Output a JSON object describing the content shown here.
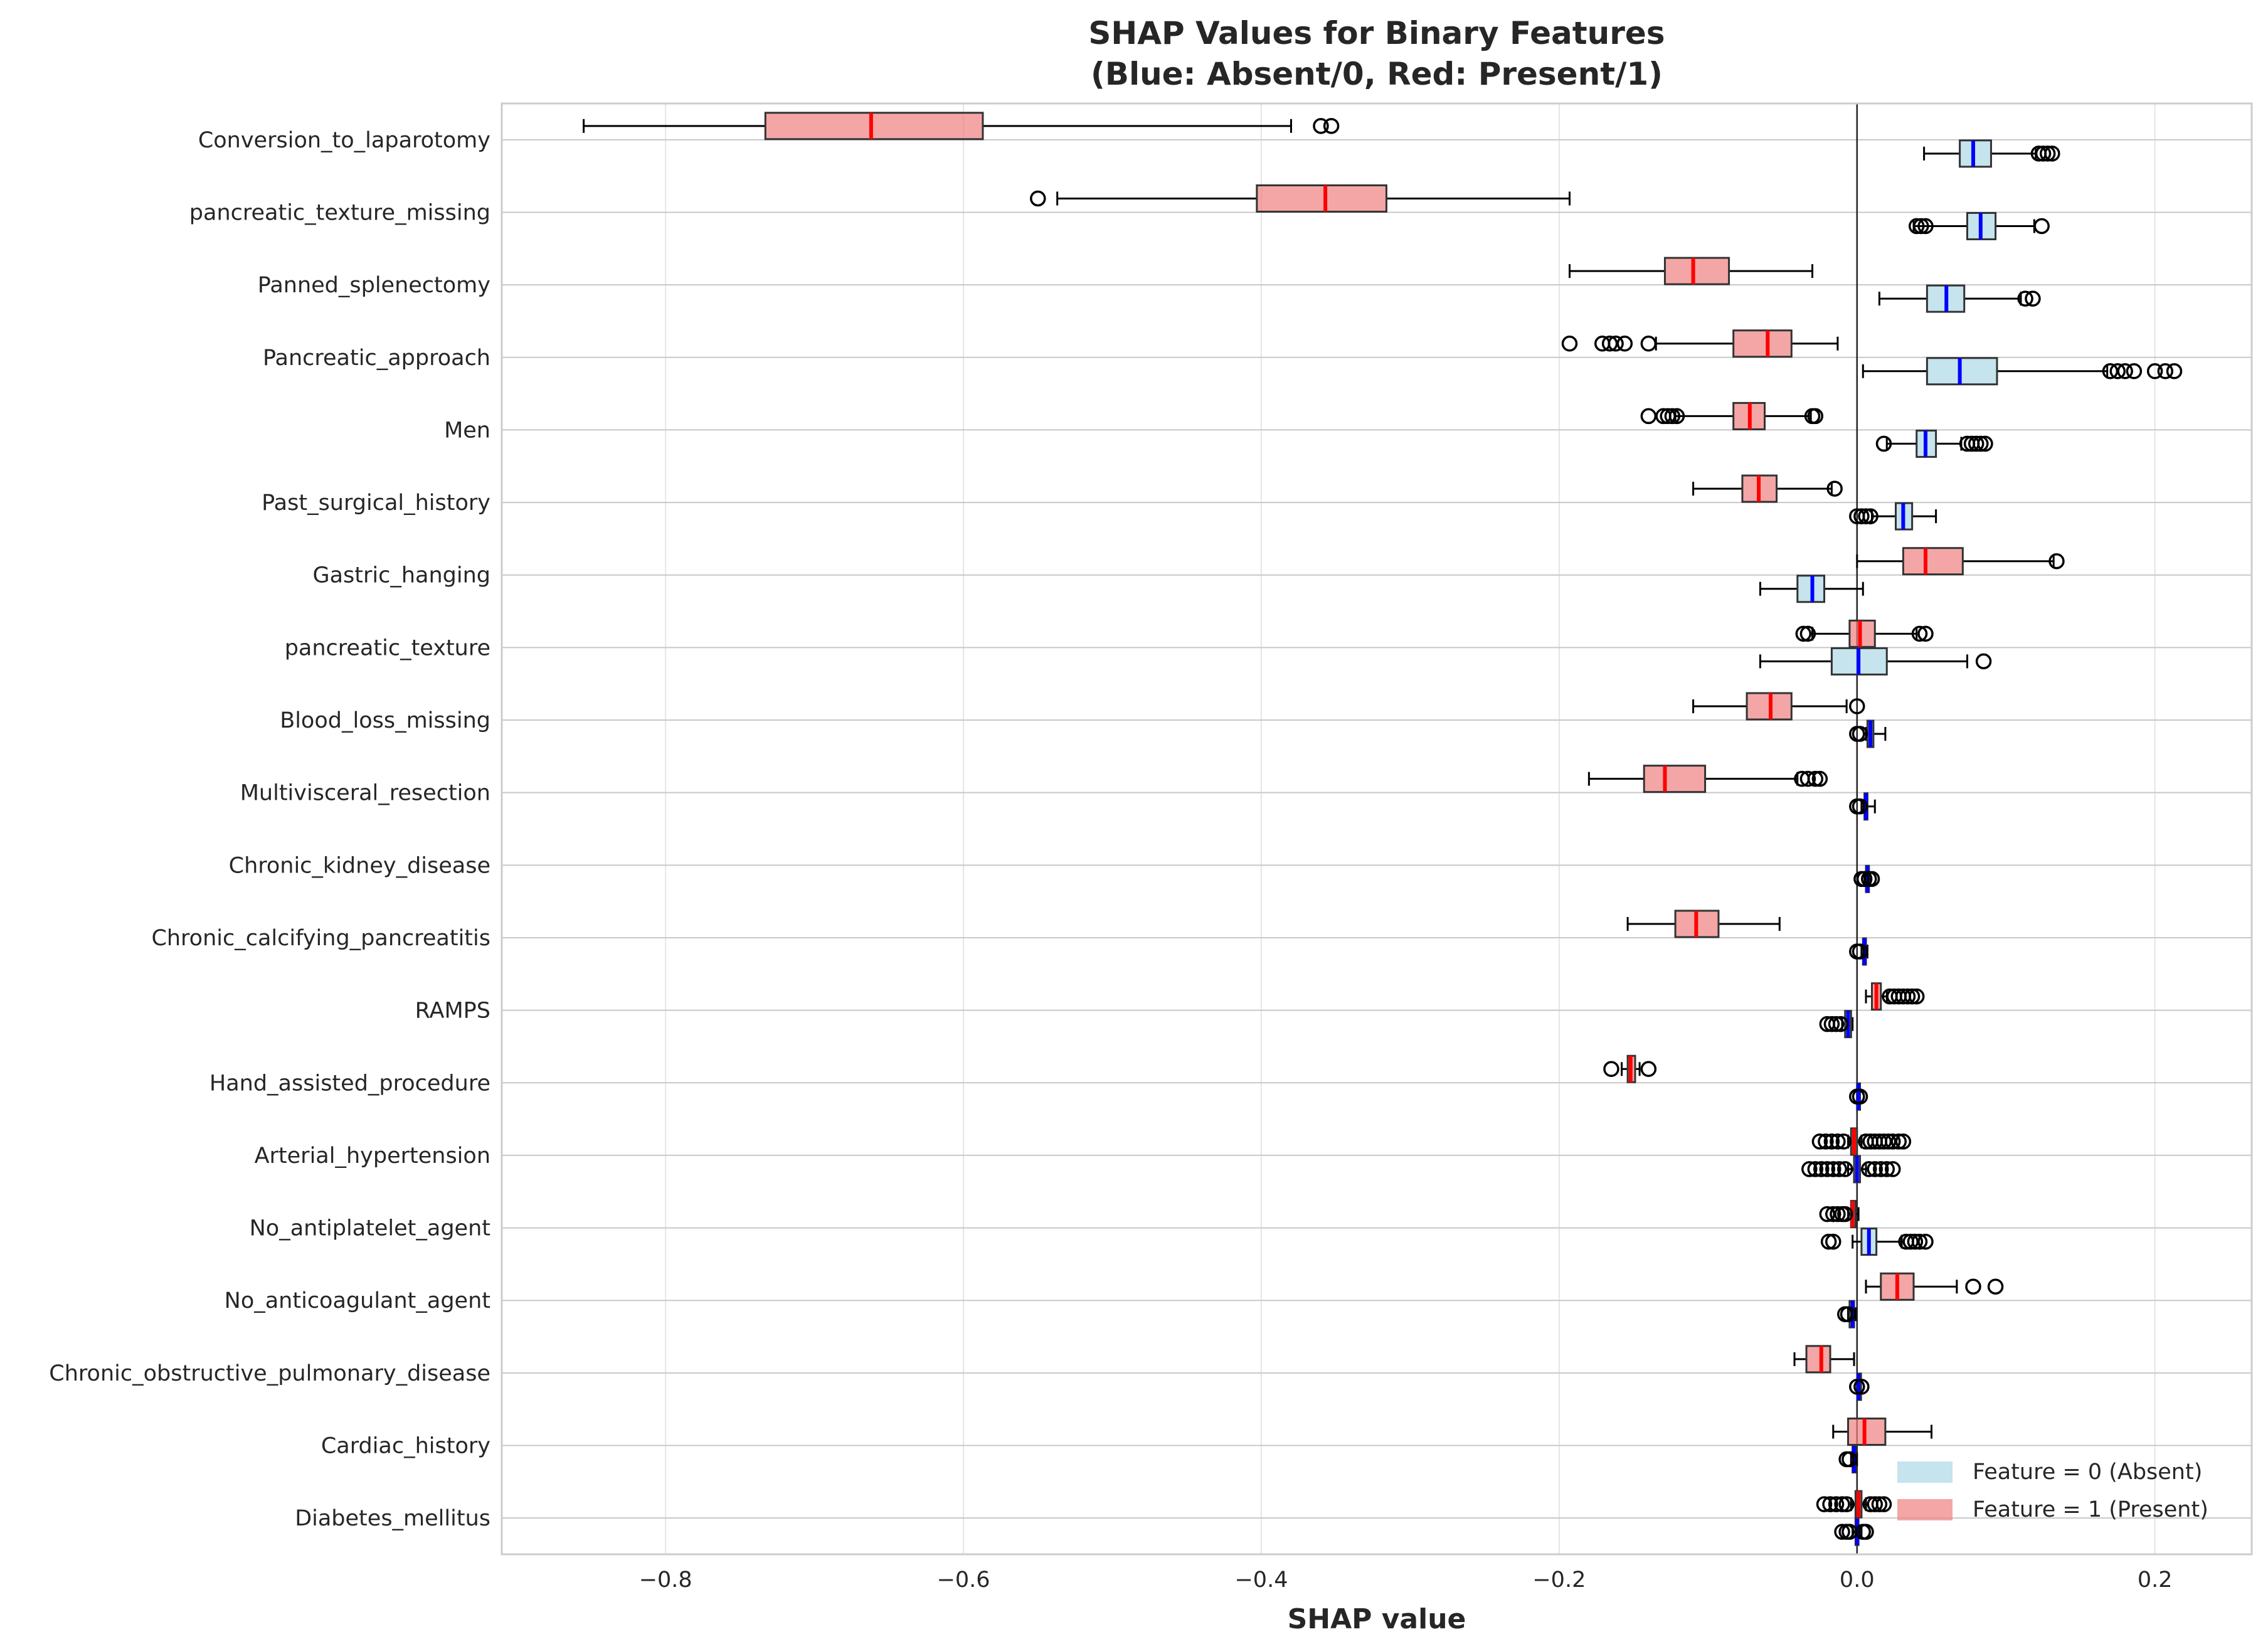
{
  "chart_data": {
    "type": "box",
    "title": "SHAP Values for Binary Features\n(Blue: Absent/0, Red: Present/1)",
    "xlabel": "SHAP value",
    "ylabel": "",
    "xlim": [
      -0.91,
      0.265
    ],
    "xticks": [
      -0.8,
      -0.6,
      -0.4,
      -0.2,
      0.0,
      0.2
    ],
    "xtick_labels": [
      "−0.8",
      "−0.6",
      "−0.4",
      "−0.2",
      "0.0",
      "0.2"
    ],
    "grid": true,
    "legend_position": "lower-right",
    "colors": {
      "absent_fill": "#add8e6",
      "absent_median": "#0000ff",
      "present_fill": "#f08080",
      "present_median": "#ff0000",
      "zero_line": "#262626",
      "grid": "#e5e5e5"
    },
    "series": [
      {
        "name": "Feature = 0 (Absent)",
        "key": "absent"
      },
      {
        "name": "Feature = 1 (Present)",
        "key": "present"
      }
    ],
    "features": [
      {
        "name": "Conversion_to_laparotomy",
        "present": {
          "min": -0.855,
          "q1": -0.733,
          "median": -0.662,
          "q3": -0.587,
          "max": -0.38,
          "fliers": [
            -0.36,
            -0.353
          ]
        },
        "absent": {
          "min": 0.045,
          "q1": 0.069,
          "median": 0.078,
          "q3": 0.09,
          "max": 0.12,
          "fliers": [
            0.122,
            0.125,
            0.128,
            0.131
          ]
        }
      },
      {
        "name": "pancreatic_texture_missing",
        "present": {
          "min": -0.537,
          "q1": -0.403,
          "median": -0.357,
          "q3": -0.316,
          "max": -0.193,
          "fliers": [
            -0.55
          ]
        },
        "absent": {
          "min": 0.038,
          "q1": 0.074,
          "median": 0.083,
          "q3": 0.093,
          "max": 0.119,
          "fliers": [
            0.04,
            0.043,
            0.046,
            0.124
          ]
        }
      },
      {
        "name": "Panned_splenectomy",
        "present": {
          "min": -0.193,
          "q1": -0.129,
          "median": -0.11,
          "q3": -0.086,
          "max": -0.03,
          "fliers": []
        },
        "absent": {
          "min": 0.015,
          "q1": 0.047,
          "median": 0.06,
          "q3": 0.072,
          "max": 0.11,
          "fliers": [
            0.113,
            0.118
          ]
        }
      },
      {
        "name": "Pancreatic_approach",
        "present": {
          "min": -0.135,
          "q1": -0.083,
          "median": -0.06,
          "q3": -0.044,
          "max": -0.013,
          "fliers": [
            -0.193,
            -0.171,
            -0.166,
            -0.162,
            -0.156,
            -0.14
          ]
        },
        "absent": {
          "min": 0.004,
          "q1": 0.047,
          "median": 0.069,
          "q3": 0.094,
          "max": 0.168,
          "fliers": [
            0.17,
            0.175,
            0.18,
            0.186,
            0.2,
            0.207,
            0.213
          ]
        }
      },
      {
        "name": "Men",
        "present": {
          "min": -0.122,
          "q1": -0.083,
          "median": -0.072,
          "q3": -0.062,
          "max": -0.031,
          "fliers": [
            -0.14,
            -0.13,
            -0.127,
            -0.124,
            -0.121,
            -0.03,
            -0.028
          ]
        },
        "absent": {
          "min": 0.02,
          "q1": 0.04,
          "median": 0.046,
          "q3": 0.053,
          "max": 0.07,
          "fliers": [
            0.018,
            0.074,
            0.077,
            0.08,
            0.083,
            0.086
          ]
        }
      },
      {
        "name": "Past_surgical_history",
        "present": {
          "min": -0.11,
          "q1": -0.077,
          "median": -0.066,
          "q3": -0.054,
          "max": -0.017,
          "fliers": [
            -0.015
          ]
        },
        "absent": {
          "min": 0.01,
          "q1": 0.026,
          "median": 0.031,
          "q3": 0.037,
          "max": 0.053,
          "fliers": [
            0.0,
            0.003,
            0.006,
            0.009
          ]
        }
      },
      {
        "name": "Gastric_hanging",
        "present": {
          "min": 0.0,
          "q1": 0.031,
          "median": 0.046,
          "q3": 0.071,
          "max": 0.132,
          "fliers": [
            0.134
          ]
        },
        "absent": {
          "min": -0.065,
          "q1": -0.04,
          "median": -0.03,
          "q3": -0.022,
          "max": 0.004,
          "fliers": []
        }
      },
      {
        "name": "pancreatic_texture",
        "present": {
          "min": -0.03,
          "q1": -0.005,
          "median": 0.002,
          "q3": 0.012,
          "max": 0.04,
          "fliers": [
            -0.036,
            -0.033,
            0.042,
            0.046
          ]
        },
        "absent": {
          "min": -0.065,
          "q1": -0.017,
          "median": 0.001,
          "q3": 0.02,
          "max": 0.074,
          "fliers": [
            0.085
          ]
        }
      },
      {
        "name": "Blood_loss_missing",
        "present": {
          "min": -0.11,
          "q1": -0.074,
          "median": -0.058,
          "q3": -0.044,
          "max": -0.007,
          "fliers": [
            0.0
          ]
        },
        "absent": {
          "min": 0.006,
          "q1": 0.007,
          "median": 0.009,
          "q3": 0.011,
          "max": 0.019,
          "fliers": [
            0.0,
            0.002
          ]
        }
      },
      {
        "name": "Multivisceral_resection",
        "present": {
          "min": -0.18,
          "q1": -0.143,
          "median": -0.129,
          "q3": -0.102,
          "max": -0.04,
          "fliers": [
            -0.037,
            -0.033,
            -0.028,
            -0.025
          ]
        },
        "absent": {
          "min": 0.003,
          "q1": 0.005,
          "median": 0.006,
          "q3": 0.007,
          "max": 0.012,
          "fliers": [
            0.0,
            0.002
          ]
        }
      },
      {
        "name": "Chronic_kidney_disease",
        "present": null,
        "absent": {
          "min": 0.005,
          "q1": 0.006,
          "median": 0.007,
          "q3": 0.008,
          "max": 0.009,
          "fliers": [
            0.003,
            0.005,
            0.008,
            0.01
          ]
        }
      },
      {
        "name": "Chronic_calcifying_pancreatitis",
        "present": {
          "min": -0.154,
          "q1": -0.122,
          "median": -0.108,
          "q3": -0.093,
          "max": -0.052,
          "fliers": []
        },
        "absent": {
          "min": 0.003,
          "q1": 0.004,
          "median": 0.005,
          "q3": 0.006,
          "max": 0.007,
          "fliers": [
            0.0,
            0.002
          ]
        }
      },
      {
        "name": "RAMPS",
        "present": {
          "min": 0.006,
          "q1": 0.01,
          "median": 0.013,
          "q3": 0.016,
          "max": 0.02,
          "fliers": [
            0.022,
            0.025,
            0.028,
            0.031,
            0.034,
            0.037,
            0.04
          ]
        },
        "absent": {
          "min": -0.01,
          "q1": -0.008,
          "median": -0.006,
          "q3": -0.004,
          "max": -0.003,
          "fliers": [
            -0.02,
            -0.017,
            -0.014,
            -0.011
          ]
        }
      },
      {
        "name": "Hand_assisted_procedure",
        "present": {
          "min": -0.158,
          "q1": -0.154,
          "median": -0.152,
          "q3": -0.149,
          "max": -0.146,
          "fliers": [
            -0.165,
            -0.14
          ]
        },
        "absent": {
          "min": 0.0,
          "q1": 0.0,
          "median": 0.001,
          "q3": 0.002,
          "max": 0.002,
          "fliers": [
            0.0,
            0.002
          ]
        }
      },
      {
        "name": "Arterial_hypertension",
        "present": {
          "min": -0.006,
          "q1": -0.004,
          "median": -0.002,
          "q3": 0.0,
          "max": 0.003,
          "fliers": [
            -0.025,
            -0.021,
            -0.017,
            -0.013,
            -0.009,
            0.006,
            0.009,
            0.012,
            0.015,
            0.018,
            0.021,
            0.024,
            0.028,
            0.031
          ]
        },
        "absent": {
          "min": -0.006,
          "q1": -0.002,
          "median": 0.0,
          "q3": 0.002,
          "max": 0.006,
          "fliers": [
            -0.032,
            -0.028,
            -0.024,
            -0.02,
            -0.016,
            -0.012,
            -0.008,
            0.008,
            0.012,
            0.016,
            0.02,
            0.024
          ]
        }
      },
      {
        "name": "No_antiplatelet_agent",
        "present": {
          "min": -0.006,
          "q1": -0.004,
          "median": -0.003,
          "q3": -0.001,
          "max": 0.001,
          "fliers": [
            -0.02,
            -0.016,
            -0.013,
            -0.01,
            -0.008
          ]
        },
        "absent": {
          "min": -0.003,
          "q1": 0.003,
          "median": 0.008,
          "q3": 0.013,
          "max": 0.03,
          "fliers": [
            -0.019,
            -0.016,
            0.033,
            0.036,
            0.039,
            0.042,
            0.046
          ]
        }
      },
      {
        "name": "No_anticoagulant_agent",
        "present": {
          "min": 0.006,
          "q1": 0.016,
          "median": 0.027,
          "q3": 0.038,
          "max": 0.067,
          "fliers": [
            0.078,
            0.093
          ]
        },
        "absent": {
          "min": -0.006,
          "q1": -0.005,
          "median": -0.003,
          "q3": -0.002,
          "max": -0.001,
          "fliers": [
            -0.008,
            -0.006
          ]
        }
      },
      {
        "name": "Chronic_obstructive_pulmonary_disease",
        "present": {
          "min": -0.042,
          "q1": -0.034,
          "median": -0.024,
          "q3": -0.018,
          "max": -0.002,
          "fliers": []
        },
        "absent": {
          "min": 0.0,
          "q1": 0.001,
          "median": 0.001,
          "q3": 0.002,
          "max": 0.002,
          "fliers": [
            0.0,
            0.003
          ]
        }
      },
      {
        "name": "Cardiac_history",
        "present": {
          "min": -0.016,
          "q1": -0.006,
          "median": 0.005,
          "q3": 0.019,
          "max": 0.05,
          "fliers": []
        },
        "absent": {
          "min": -0.004,
          "q1": -0.003,
          "median": -0.002,
          "q3": -0.001,
          "max": 0.0,
          "fliers": [
            -0.007,
            -0.005
          ]
        }
      },
      {
        "name": "Diabetes_mellitus",
        "present": {
          "min": -0.004,
          "q1": -0.001,
          "median": 0.001,
          "q3": 0.003,
          "max": 0.006,
          "fliers": [
            -0.022,
            -0.018,
            -0.014,
            -0.01,
            -0.007,
            0.009,
            0.012,
            0.015,
            0.018
          ]
        },
        "absent": {
          "min": -0.003,
          "q1": -0.001,
          "median": 0.0,
          "q3": 0.001,
          "max": 0.003,
          "fliers": [
            -0.01,
            -0.007,
            -0.005,
            0.004,
            0.006
          ]
        }
      }
    ]
  }
}
